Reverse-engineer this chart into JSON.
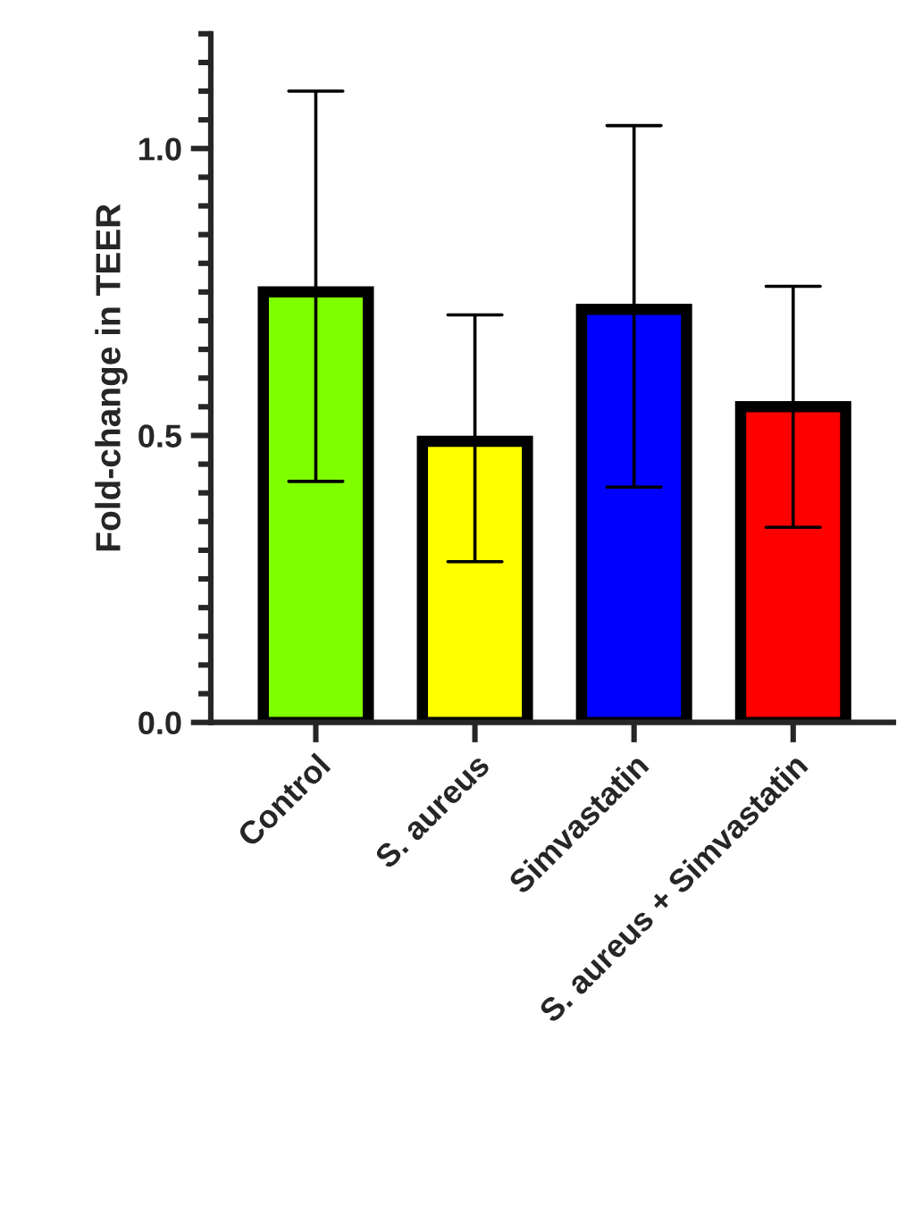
{
  "chart_data": {
    "type": "bar",
    "ylabel": "Fold-change in TEER",
    "categories": [
      "Control",
      "S. aureus",
      "Simvastatin",
      "S. aureus + Simvastatin"
    ],
    "values": [
      0.75,
      0.49,
      0.72,
      0.55
    ],
    "errors": [
      [
        0.42,
        1.1
      ],
      [
        0.28,
        0.71
      ],
      [
        0.41,
        1.04
      ],
      [
        0.34,
        0.76
      ]
    ],
    "colors": [
      "#80ff00",
      "#ffff00",
      "#0000ff",
      "#ff0000"
    ],
    "ylim": [
      0,
      1.2
    ],
    "yticks": [
      {
        "value": 0,
        "label": "0.0"
      },
      0.5,
      {
        "value": 1,
        "label": "1.0"
      }
    ],
    "grid": false
  }
}
